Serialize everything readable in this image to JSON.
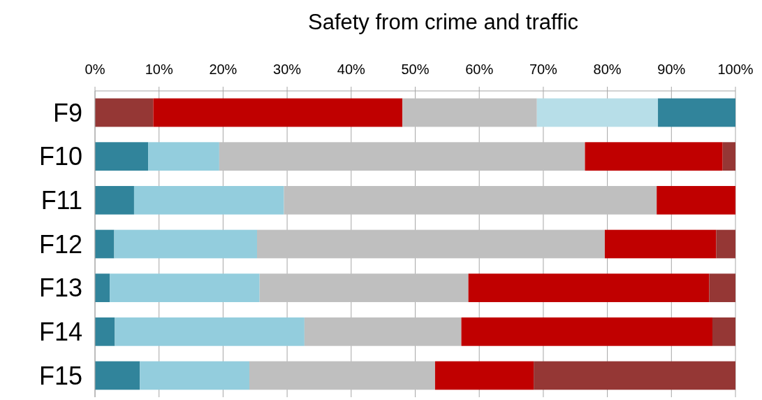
{
  "chart_data": {
    "type": "bar",
    "orientation": "horizontal",
    "stacked": true,
    "title": "Safety from crime and traffic",
    "categories": [
      "F9",
      "F10",
      "F11",
      "F12",
      "F13",
      "F14",
      "F15"
    ],
    "series": [
      {
        "color": "#953735",
        "values": [
          9.1,
          null,
          null,
          null,
          null,
          null,
          null
        ]
      },
      {
        "color": "#c00000",
        "values": [
          38.9,
          null,
          null,
          null,
          null,
          null,
          null
        ]
      },
      {
        "color": "#bfbfbf",
        "values": [
          21.0,
          null,
          null,
          null,
          null,
          null,
          null
        ]
      },
      {
        "color": "#b7dee8",
        "values": [
          18.9,
          null,
          null,
          null,
          null,
          null,
          null
        ]
      },
      {
        "color": "#31849b",
        "values": [
          12.1,
          8.3,
          6.1,
          3.0,
          2.3,
          3.1,
          7.0
        ]
      },
      {
        "color": "#93cddd",
        "values": [
          null,
          11.1,
          23.4,
          22.3,
          23.4,
          29.6,
          17.1
        ]
      },
      {
        "color": "#bfbfbf",
        "values": [
          null,
          57.1,
          58.2,
          54.3,
          32.6,
          24.5,
          29.0
        ]
      },
      {
        "color": "#c00000",
        "values": [
          null,
          21.5,
          12.3,
          17.4,
          37.6,
          39.2,
          15.4
        ]
      },
      {
        "color": "#953735",
        "values": [
          null,
          2.0,
          null,
          3.0,
          4.1,
          3.6,
          31.5
        ]
      }
    ],
    "xlim": [
      0,
      100
    ],
    "xticks": [
      {
        "value": 0,
        "label": "0%"
      },
      {
        "value": 10,
        "label": "10%"
      },
      {
        "value": 20,
        "label": "20%"
      },
      {
        "value": 30,
        "label": "30%"
      },
      {
        "value": 40,
        "label": "40%"
      },
      {
        "value": 50,
        "label": "50%"
      },
      {
        "value": 60,
        "label": "60%"
      },
      {
        "value": 70,
        "label": "70%"
      },
      {
        "value": 80,
        "label": "80%"
      },
      {
        "value": 90,
        "label": "90%"
      },
      {
        "value": 100,
        "label": "100%"
      }
    ],
    "grid": "x"
  }
}
